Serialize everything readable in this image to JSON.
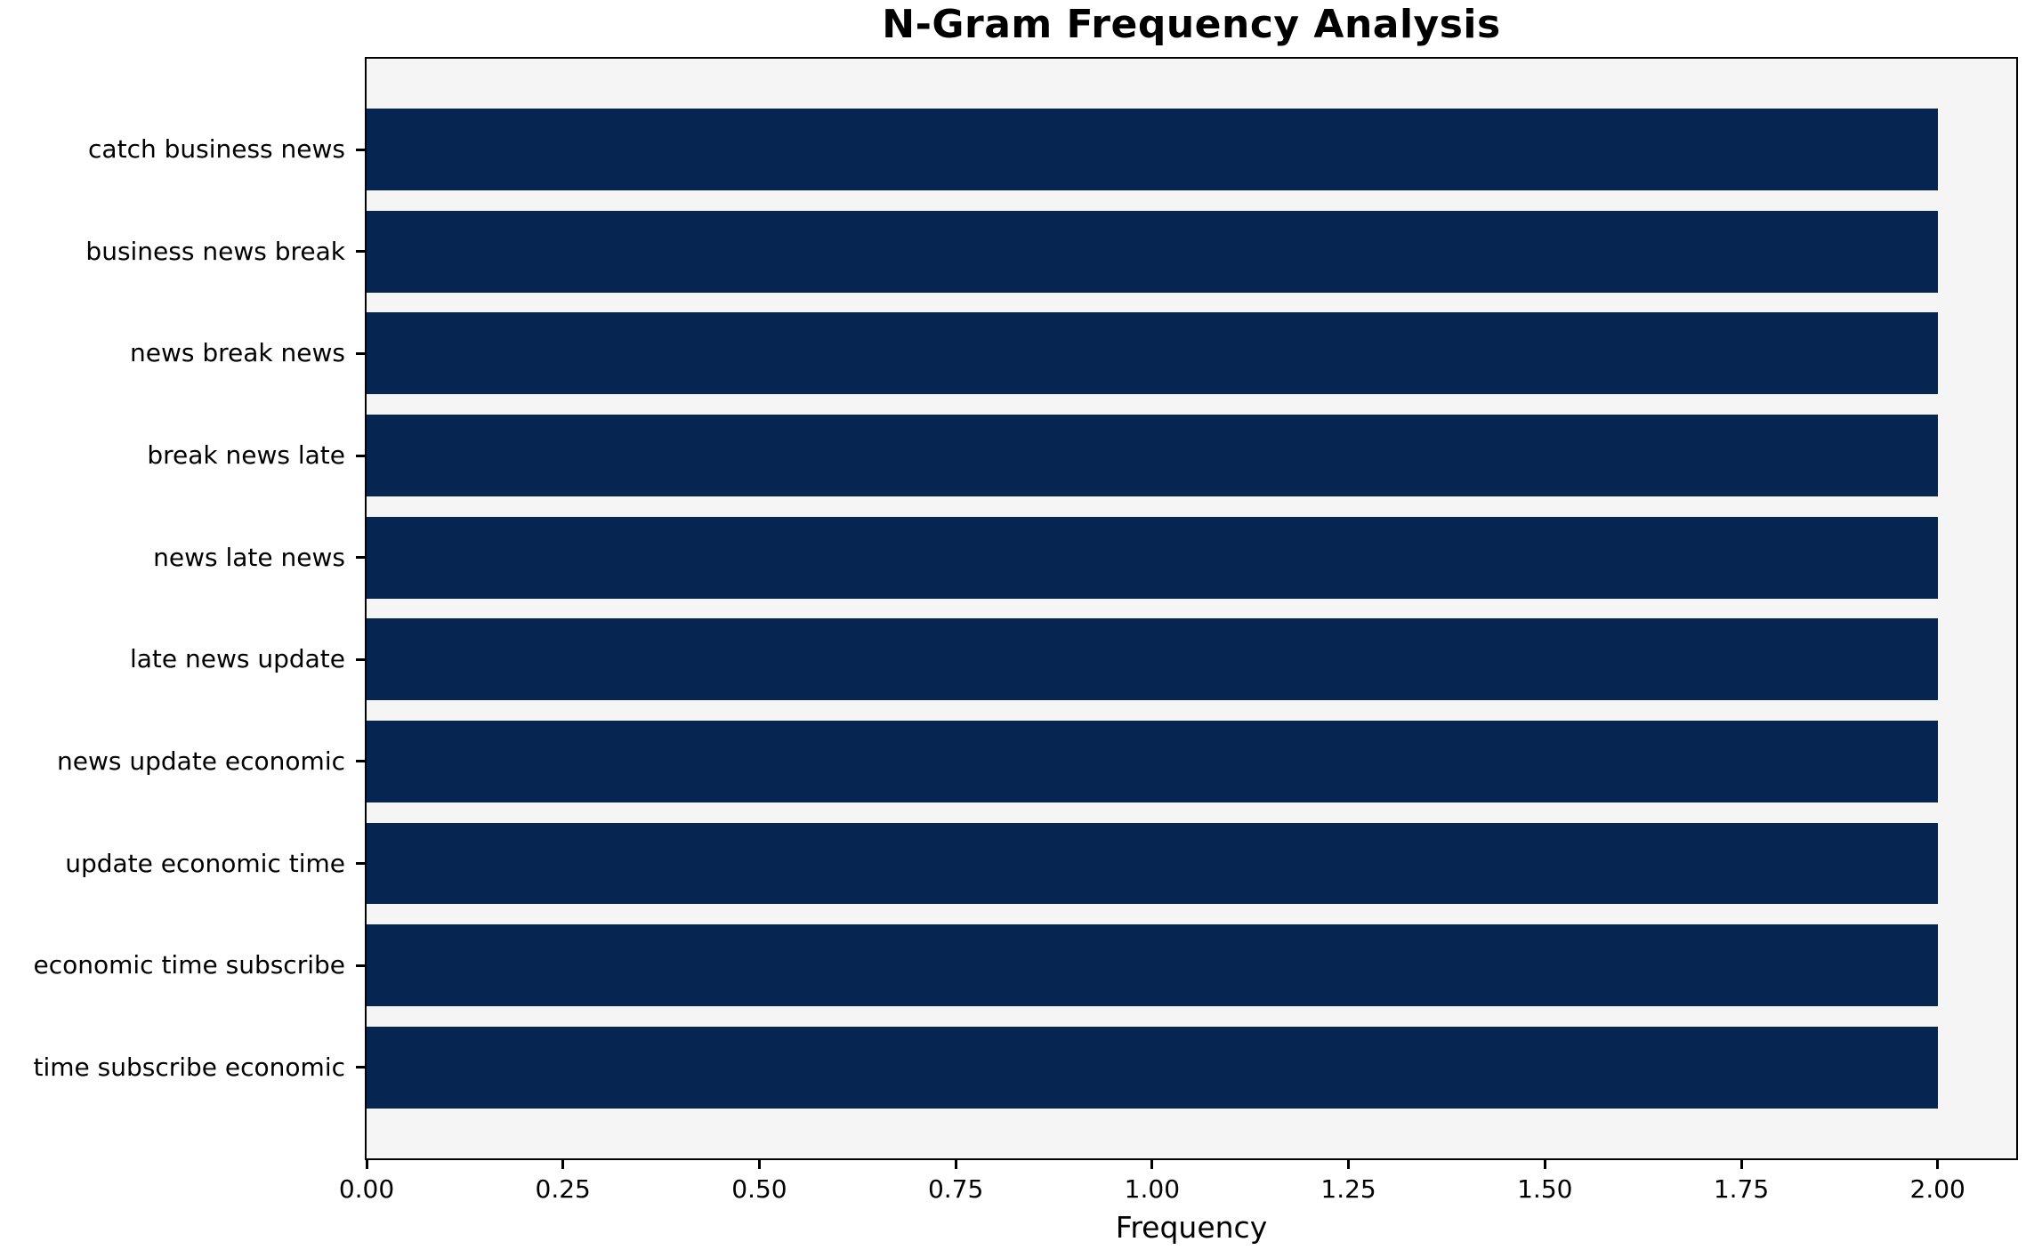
{
  "title": "N-Gram Frequency Analysis",
  "chart_data": {
    "type": "bar",
    "orientation": "horizontal",
    "title": "N-Gram Frequency Analysis",
    "xlabel": "Frequency",
    "ylabel": "",
    "categories": [
      "catch business news",
      "business news break",
      "news break news",
      "break news late",
      "news late news",
      "late news update",
      "news update economic",
      "update economic time",
      "economic time subscribe",
      "time subscribe economic"
    ],
    "values": [
      2,
      2,
      2,
      2,
      2,
      2,
      2,
      2,
      2,
      2
    ],
    "xlim": [
      0,
      2.1
    ],
    "xticks": [
      0,
      0.25,
      0.5,
      0.75,
      1,
      1.25,
      1.5,
      1.75,
      2
    ],
    "xtick_labels": [
      "0.00",
      "0.25",
      "0.50",
      "0.75",
      "1.00",
      "1.25",
      "1.50",
      "1.75",
      "2.00"
    ],
    "grid": false,
    "legend": null,
    "bar_value_labels": false,
    "colors": {
      "bar": "#062550",
      "plot_background": "#f5f5f6",
      "figure_background": "#ffffff",
      "spine": "#000000",
      "text": "#000000"
    }
  }
}
